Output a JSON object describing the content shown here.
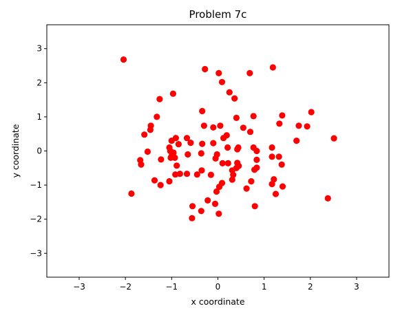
{
  "chart_data": {
    "type": "scatter",
    "title": "Problem 7c",
    "xlabel": "x coordinate",
    "ylabel": "y coordinate",
    "xlim": [
      -3.7,
      3.7
    ],
    "ylim": [
      -3.7,
      3.7
    ],
    "xticks": [
      -3,
      -2,
      -1,
      0,
      1,
      2,
      3
    ],
    "yticks": [
      -3,
      -2,
      -1,
      0,
      1,
      2,
      3
    ],
    "xtick_labels": [
      "−3",
      "−2",
      "−1",
      "0",
      "1",
      "2",
      "3"
    ],
    "ytick_labels": [
      "−3",
      "−2",
      "−1",
      "0",
      "1",
      "2",
      "3"
    ],
    "grid": false,
    "marker_color": "#ff0000",
    "series": [
      {
        "points": [
          [
            -2.04,
            2.68
          ],
          [
            -0.28,
            2.4
          ],
          [
            0.02,
            2.28
          ],
          [
            0.69,
            2.28
          ],
          [
            1.19,
            2.45
          ],
          [
            0.09,
            2.02
          ],
          [
            0.25,
            1.72
          ],
          [
            0.36,
            1.54
          ],
          [
            -1.26,
            1.52
          ],
          [
            -0.97,
            1.68
          ],
          [
            -0.34,
            1.17
          ],
          [
            2.02,
            1.14
          ],
          [
            -1.32,
            1.0
          ],
          [
            0.4,
            0.97
          ],
          [
            0.77,
            1.02
          ],
          [
            1.39,
            1.04
          ],
          [
            1.33,
            0.8
          ],
          [
            1.75,
            0.74
          ],
          [
            1.93,
            0.72
          ],
          [
            -1.45,
            0.74
          ],
          [
            -1.46,
            0.62
          ],
          [
            -0.3,
            0.74
          ],
          [
            0.05,
            0.74
          ],
          [
            -0.1,
            0.69
          ],
          [
            0.55,
            0.68
          ],
          [
            -1.59,
            0.48
          ],
          [
            0.7,
            0.56
          ],
          [
            2.51,
            0.37
          ],
          [
            -1.0,
            0.3
          ],
          [
            -0.91,
            0.38
          ],
          [
            -0.85,
            0.2
          ],
          [
            -0.67,
            0.38
          ],
          [
            -0.59,
            0.24
          ],
          [
            -0.34,
            0.21
          ],
          [
            -0.1,
            0.23
          ],
          [
            0.12,
            0.38
          ],
          [
            0.19,
            0.46
          ],
          [
            0.21,
            0.1
          ],
          [
            0.44,
            0.1
          ],
          [
            0.42,
            0.05
          ],
          [
            0.77,
            0.1
          ],
          [
            0.84,
            0.0
          ],
          [
            1.7,
            0.3
          ],
          [
            1.17,
            0.1
          ],
          [
            -1.05,
            0.1
          ],
          [
            -1.03,
            0.0
          ],
          [
            -0.96,
            -0.05
          ],
          [
            -1.0,
            -0.15
          ],
          [
            -0.93,
            -0.2
          ],
          [
            -1.52,
            -0.02
          ],
          [
            -1.68,
            -0.27
          ],
          [
            -1.66,
            -0.4
          ],
          [
            -1.23,
            -0.25
          ],
          [
            -1.02,
            -0.2
          ],
          [
            -0.65,
            -0.1
          ],
          [
            -0.36,
            -0.07
          ],
          [
            -0.05,
            -0.22
          ],
          [
            -0.02,
            -0.1
          ],
          [
            0.1,
            -0.36
          ],
          [
            0.22,
            -0.36
          ],
          [
            0.42,
            -0.35
          ],
          [
            0.45,
            -0.44
          ],
          [
            0.4,
            -0.5
          ],
          [
            0.84,
            -0.26
          ],
          [
            1.17,
            -0.17
          ],
          [
            1.32,
            -0.17
          ],
          [
            1.38,
            -0.4
          ],
          [
            -0.89,
            -0.43
          ],
          [
            -1.37,
            -0.86
          ],
          [
            -1.24,
            -1.0
          ],
          [
            -1.05,
            -0.89
          ],
          [
            -0.92,
            -0.69
          ],
          [
            -0.82,
            -0.67
          ],
          [
            -0.67,
            -0.67
          ],
          [
            -0.45,
            -0.69
          ],
          [
            -0.35,
            -0.57
          ],
          [
            -0.15,
            -0.7
          ],
          [
            0.31,
            -0.57
          ],
          [
            0.33,
            -0.7
          ],
          [
            0.31,
            -0.84
          ],
          [
            0.09,
            -0.94
          ],
          [
            0.03,
            -1.05
          ],
          [
            -0.03,
            -1.19
          ],
          [
            0.79,
            -0.55
          ],
          [
            0.84,
            -0.49
          ],
          [
            0.72,
            -0.89
          ],
          [
            0.62,
            -1.1
          ],
          [
            1.17,
            -0.97
          ],
          [
            1.21,
            -0.83
          ],
          [
            1.4,
            -1.04
          ],
          [
            1.25,
            -1.26
          ],
          [
            -1.87,
            -1.25
          ],
          [
            -0.22,
            -1.45
          ],
          [
            -0.06,
            -1.55
          ],
          [
            0.8,
            -1.62
          ],
          [
            -0.55,
            -1.62
          ],
          [
            -0.36,
            -1.76
          ],
          [
            0.02,
            -1.84
          ],
          [
            -0.56,
            -1.97
          ],
          [
            2.38,
            -1.39
          ]
        ]
      }
    ]
  }
}
